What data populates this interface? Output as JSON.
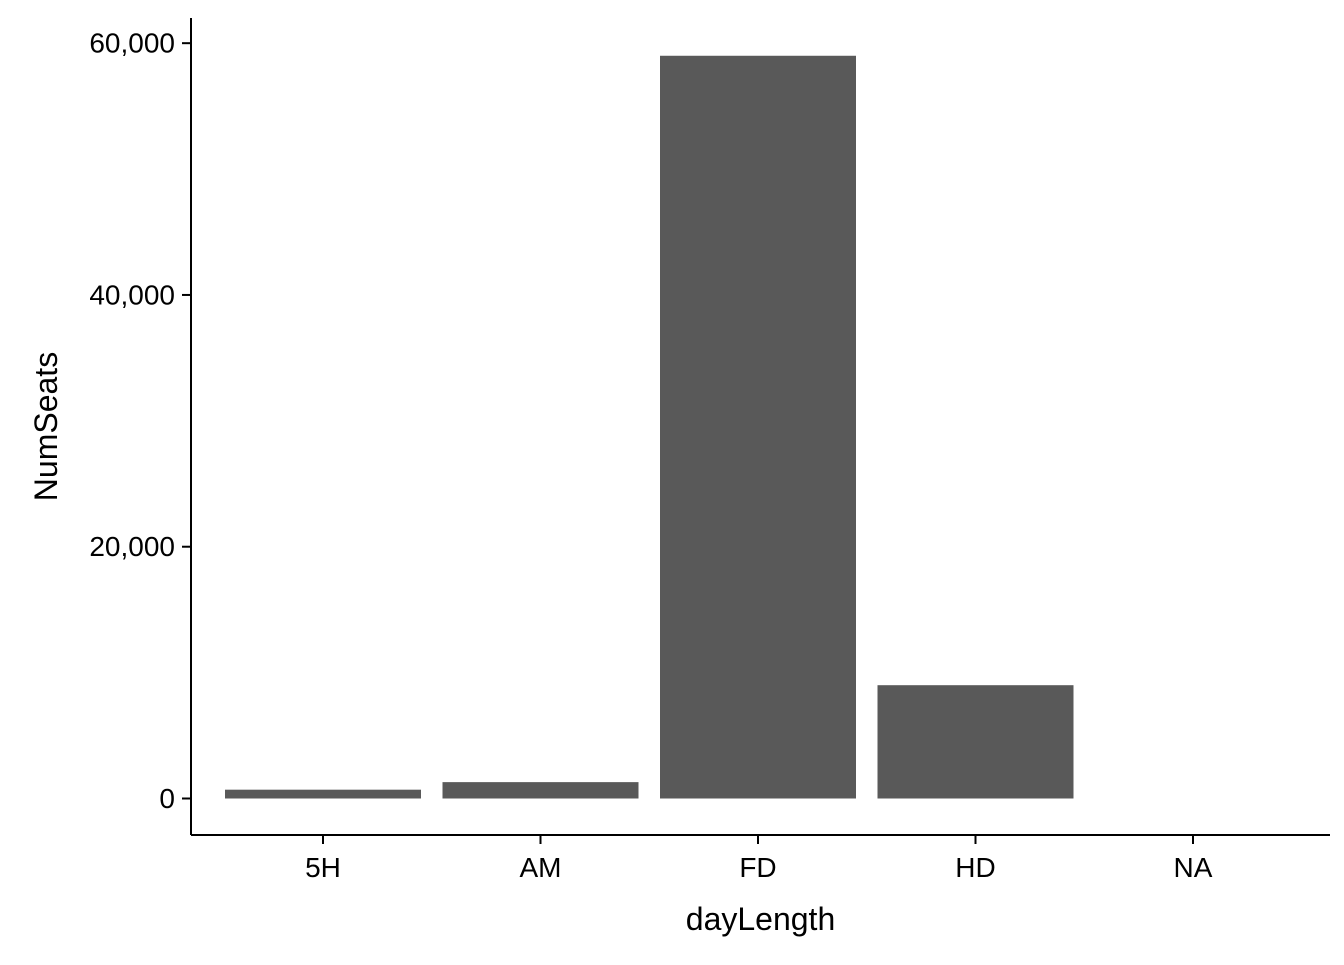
{
  "chart_data": {
    "type": "bar",
    "categories": [
      "5H",
      "AM",
      "FD",
      "HD",
      "NA"
    ],
    "values": [
      700,
      1300,
      59000,
      9000,
      0
    ],
    "xlabel": "dayLength",
    "ylabel": "NumSeats",
    "ylim": [
      -2900,
      62000
    ],
    "yticks": [
      0,
      20000,
      40000,
      60000
    ],
    "ytick_labels": [
      "0",
      "20,000",
      "40,000",
      "60,000"
    ],
    "grid": false,
    "legend": "none",
    "bar_color": "#595959",
    "axis_color": "#000000",
    "background": "#ffffff"
  }
}
